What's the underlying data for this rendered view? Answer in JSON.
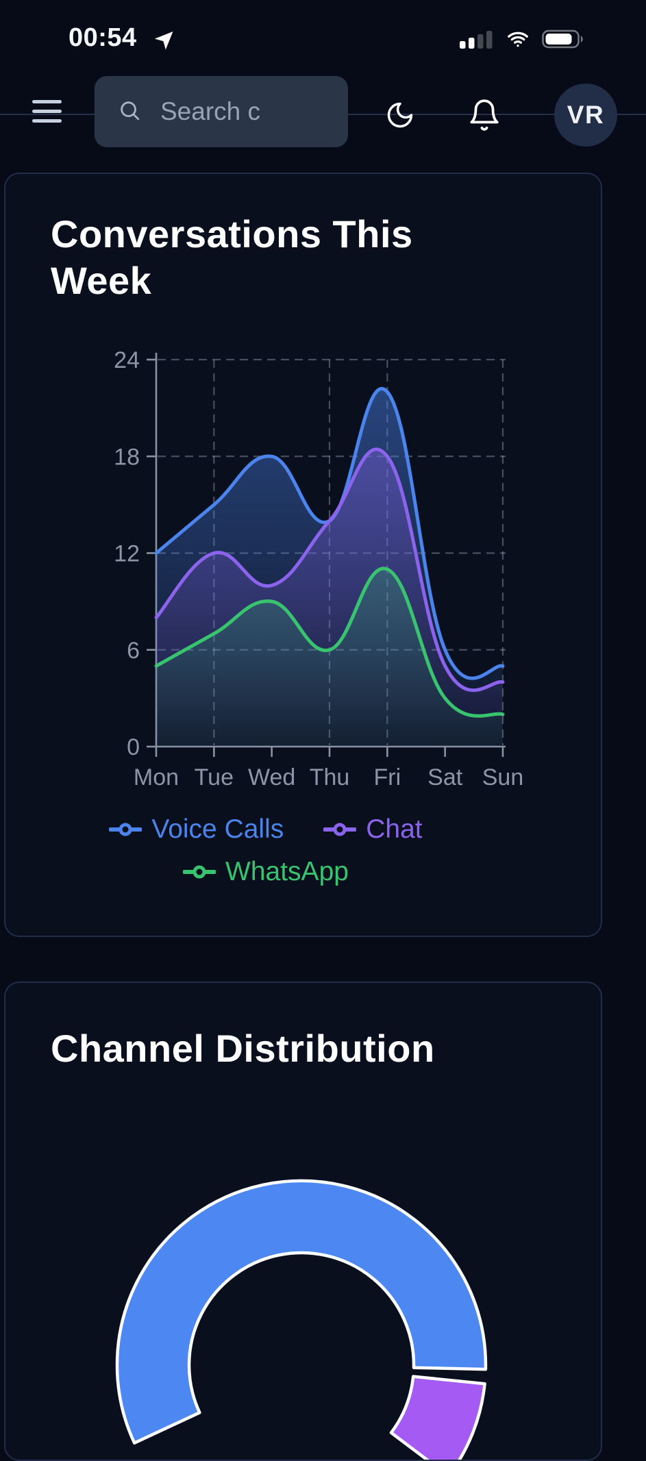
{
  "status_bar": {
    "time": "00:54",
    "signal_bars_active": 2,
    "signal_bars_total": 4,
    "battery_level": 0.82,
    "icons": [
      "location-arrow-icon",
      "signal-icon",
      "wifi-icon",
      "battery-icon"
    ]
  },
  "header": {
    "search_placeholder": "Search c",
    "avatar_initials": "VR",
    "icons": [
      "menu-icon",
      "search-icon",
      "moon-icon",
      "bell-icon"
    ]
  },
  "colors": {
    "page_bg": "#070b17",
    "card_bg": "#0a0f1e",
    "card_border": "#222d49",
    "axis_text": "#8d95a6",
    "grid_line": "rgba(160,172,196,0.40)",
    "axis_line": "#8a93a3",
    "search_bg": "#2a3547",
    "accent_blue": "#4b84ec",
    "accent_purple": "#8b63ec",
    "accent_green": "#38c46f",
    "donut_blue": "#4d87f2",
    "donut_purple": "#a55af4",
    "donut_border": "#ffffff"
  },
  "chart_data": [
    {
      "type": "area",
      "title": "Conversations This Week",
      "categories": [
        "Mon",
        "Tue",
        "Wed",
        "Thu",
        "Fri",
        "Sat",
        "Sun"
      ],
      "series": [
        {
          "name": "Voice Calls",
          "color": "#4b84ec",
          "values": [
            12,
            15,
            18,
            14,
            22,
            6,
            5
          ]
        },
        {
          "name": "Chat",
          "color": "#8b63ec",
          "values": [
            8,
            12,
            10,
            14,
            18,
            5,
            4
          ]
        },
        {
          "name": "WhatsApp",
          "color": "#38c46f",
          "values": [
            5,
            7,
            9,
            6,
            11,
            3,
            2
          ]
        }
      ],
      "ylim": [
        0,
        24
      ],
      "yticks": [
        0,
        6,
        12,
        18,
        24
      ],
      "grid": {
        "dashed": true,
        "h_values": [
          6,
          12,
          18,
          24
        ],
        "v_categories": [
          "Tue",
          "Thu",
          "Fri",
          "Sun"
        ]
      },
      "legend_position": "bottom",
      "line_smoothing": true
    },
    {
      "type": "doughnut",
      "title": "Channel Distribution",
      "cutout_ratio": 0.61,
      "segment_border_color": "#ffffff",
      "segments": [
        {
          "name": "segment-blue",
          "color": "#4d87f2",
          "start_deg": -115,
          "end_deg": 91.3
        },
        {
          "name": "segment-purple",
          "color": "#a55af4",
          "start_deg": 95.8,
          "end_deg": 127
        }
      ],
      "note": "bottom of doughnut cut off by viewport"
    }
  ]
}
